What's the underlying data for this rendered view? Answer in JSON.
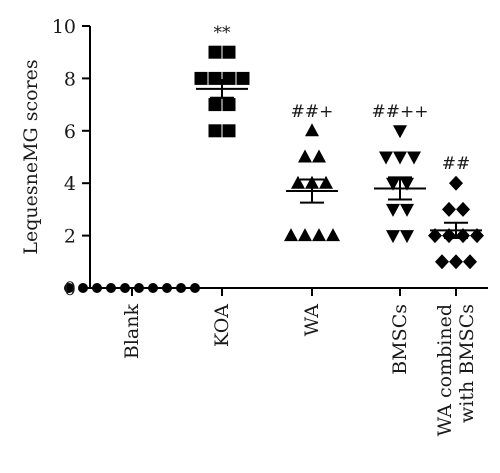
{
  "chart_data": {
    "type": "scatter",
    "ylabel": "LequesneMG scores",
    "ylim": [
      0,
      10
    ],
    "yticks": [
      0,
      2,
      4,
      6,
      8,
      10
    ],
    "mark_color": "#000000",
    "groups": [
      {
        "category": "Blank",
        "label_lines": [
          "Blank"
        ],
        "marker": "circle",
        "values": [
          0,
          0,
          0,
          0,
          0,
          0,
          0,
          0,
          0,
          0
        ],
        "mean": 0,
        "sem": 0,
        "significance": ""
      },
      {
        "category": "KOA",
        "label_lines": [
          "KOA"
        ],
        "marker": "square",
        "values": [
          9,
          9,
          8,
          8,
          8,
          8,
          7,
          7,
          6,
          6
        ],
        "mean": 7.6,
        "sem": 0.34,
        "significance": "**"
      },
      {
        "category": "WA",
        "label_lines": [
          "WA"
        ],
        "marker": "triangle-up",
        "values": [
          6,
          5,
          5,
          4,
          4,
          4,
          2,
          2,
          2,
          2
        ],
        "mean": 3.7,
        "sem": 0.44,
        "significance": "##+"
      },
      {
        "category": "BMSCs",
        "label_lines": [
          "BMSCs"
        ],
        "marker": "triangle-down",
        "values": [
          6,
          5,
          5,
          5,
          4,
          4,
          3,
          3,
          2,
          2
        ],
        "mean": 3.8,
        "sem": 0.42,
        "significance": "##++"
      },
      {
        "category": "WA combined with BMSCs",
        "label_lines": [
          "WA combined",
          "with BMSCs"
        ],
        "marker": "diamond",
        "values": [
          4,
          3,
          3,
          2,
          2,
          2,
          2,
          1,
          1,
          1
        ],
        "mean": 2.2,
        "sem": 0.29,
        "significance": "##"
      }
    ]
  }
}
